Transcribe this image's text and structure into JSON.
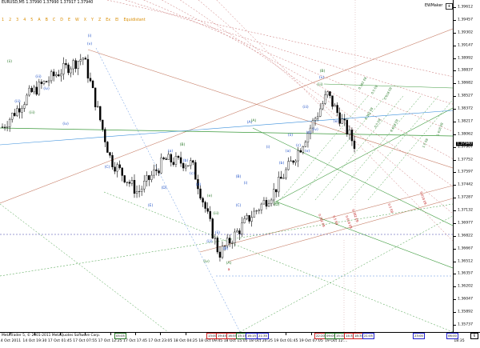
{
  "chart": {
    "symbol_info": "EURUSD,M5 1.37990 1.37990 1.37917 1.37940",
    "indicator_name": "EWMaker",
    "expand_glyph": "+",
    "copyright": "MetaTrader 5, © 2001-2011 MetaQuotes Software Corp."
  },
  "toolbar": {
    "buttons": [
      "1",
      "2",
      "3",
      "4",
      "5",
      "A",
      "B",
      "C",
      "D",
      "E",
      "W",
      "X",
      "Y",
      "Z",
      "Ex",
      "El",
      "Equidistant"
    ]
  },
  "price_axis": {
    "labels": [
      "1.39612",
      "1.39457",
      "1.39302",
      "1.39147",
      "1.38992",
      "1.38837",
      "1.38682",
      "1.38527",
      "1.38372",
      "1.38217",
      "1.38062",
      "1.37907",
      "1.37752",
      "1.37597",
      "1.37442",
      "1.37287",
      "1.37132",
      "1.36977",
      "1.36822",
      "1.36667",
      "1.36512",
      "1.36357",
      "1.36202",
      "1.36047",
      "1.35892",
      "1.35737"
    ],
    "current_price": "1.37940"
  },
  "time_axis": {
    "labels": [
      "14 Oct 2011",
      "14 Oct 19:30",
      "17 Oct 01:45",
      "17 Oct 07:55",
      "17 Oct 12:25",
      "17 Oct 17:45",
      "17 Oct 23:05",
      "18 Oct 04:25",
      "18 Oct 09:45",
      "18 Oct 15:05",
      "18 Oct 20:25",
      "19 Oct 01:45",
      "19 Oct 07:05",
      "19 Oct 12:..."
    ],
    "right_label": "18:35",
    "version": "6"
  },
  "time_boxes": [
    {
      "text": "05:05",
      "color": "green"
    },
    {
      "text": "13:00",
      "color": "red"
    },
    {
      "text": "19:45",
      "color": "red"
    },
    {
      "text": "16:55",
      "color": "red"
    },
    {
      "text": "15:15",
      "color": "green"
    },
    {
      "text": "16:15",
      "color": "blue"
    },
    {
      "text": "21:35",
      "color": "blue"
    },
    {
      "text": "22:20",
      "color": "red"
    },
    {
      "text": "09:05",
      "color": "green"
    },
    {
      "text": "15:10",
      "color": "green"
    },
    {
      "text": "14:35",
      "color": "red"
    },
    {
      "text": "18:35",
      "color": "red"
    },
    {
      "text": "21:05",
      "color": "blue"
    },
    {
      "text": "23:00",
      "color": "blue"
    },
    {
      "text": "06:00",
      "color": "blue"
    }
  ],
  "wave_labels": [
    {
      "text": "(i)",
      "color": "blue"
    },
    {
      "text": "(ii)",
      "color": "green"
    },
    {
      "text": "(v)",
      "color": "blue"
    },
    {
      "text": "(iii)",
      "color": "blue"
    },
    {
      "text": "(iv)",
      "color": "blue"
    },
    {
      "text": "(A)",
      "color": "blue"
    },
    {
      "text": "(B)",
      "color": "green"
    },
    {
      "text": "(C)",
      "color": "blue"
    },
    {
      "text": "(D)",
      "color": "blue"
    },
    {
      "text": "(E)",
      "color": "blue"
    },
    {
      "text": "(iii)",
      "color": "blue"
    },
    {
      "text": "(iv)",
      "color": "blue"
    },
    {
      "text": "(iii)",
      "color": "green"
    },
    {
      "text": "(A)",
      "color": "green"
    },
    {
      "text": "(B)",
      "color": "blue"
    },
    {
      "text": "(C)",
      "color": "green"
    },
    {
      "text": "(a)",
      "color": "blue"
    },
    {
      "text": "(b)",
      "color": "blue"
    },
    {
      "text": "(c)",
      "color": "blue"
    },
    {
      "text": "(d)",
      "color": "blue"
    },
    {
      "text": "(e)",
      "color": "green"
    },
    {
      "text": "(iii)",
      "color": "green"
    },
    {
      "text": "a",
      "color": "red"
    },
    {
      "text": "(i)",
      "color": "blue"
    },
    {
      "text": "(ii)",
      "color": "blue"
    },
    {
      "text": "(iii)",
      "color": "blue"
    },
    {
      "text": "(iv)",
      "color": "green"
    },
    {
      "text": "(A)",
      "color": "green"
    },
    {
      "text": "(B)",
      "color": "blue"
    },
    {
      "text": "(C)",
      "color": "blue"
    },
    {
      "text": "(D)",
      "color": "green"
    },
    {
      "text": "(B)",
      "color": "green"
    },
    {
      "text": "(v)",
      "color": "blue"
    },
    {
      "text": "(iii)",
      "color": "blue"
    },
    {
      "text": "(iv)",
      "color": "blue"
    },
    {
      "text": "(a)",
      "color": "blue"
    },
    {
      "text": "(b)",
      "color": "blue"
    },
    {
      "text": "(c)",
      "color": "blue"
    },
    {
      "text": "(d)",
      "color": "blue"
    },
    {
      "text": "(e)",
      "color": "blue"
    },
    {
      "text": "(ii)",
      "color": "blue"
    },
    {
      "text": "(iii)",
      "color": "green"
    },
    {
      "text": "(i)",
      "color": "blue"
    },
    {
      "text": "(v)",
      "color": "blue"
    }
  ],
  "fan_labels": [
    {
      "text": "0.382 EB",
      "color": "green"
    },
    {
      "text": "0.5 EB",
      "color": "green"
    },
    {
      "text": "0.618 EB",
      "color": "green"
    },
    {
      "text": "1.0 EB",
      "color": "green"
    },
    {
      "text": "1.618 EB",
      "color": "green"
    },
    {
      "text": "0.382 EB",
      "color": "red"
    },
    {
      "text": "0.5 EB",
      "color": "red"
    },
    {
      "text": "0.618 EB",
      "color": "red"
    },
    {
      "text": "0.382 EB",
      "color": "green"
    },
    {
      "text": "0.5 EB",
      "color": "green"
    },
    {
      "text": "0.618 EB",
      "color": "green"
    },
    {
      "text": "0.382 EB",
      "color": "red"
    },
    {
      "text": "0.5 EB",
      "color": "red"
    },
    {
      "text": "0.618 EB",
      "color": "red"
    }
  ],
  "colors": {
    "candles": "#000000",
    "pitchfork_red": "#c8806a",
    "pitchfork_green": "#3c9a3c",
    "trend_blue": "#3a8fdc",
    "dotted_green": "#3c9a3c",
    "dotted_blue": "#5b8fe0",
    "dotted_red": "#c86e6e",
    "dotted_navy": "#3a3aa8",
    "label_blue": "#2455c8",
    "label_green": "#2b7a2b",
    "label_red": "#c22222"
  },
  "chart_data": {
    "type": "candlestick",
    "symbol": "EURUSD",
    "timeframe": "M5",
    "ylim": [
      1.35737,
      1.39612
    ],
    "ohlc_last": {
      "open": 1.3799,
      "high": 1.3799,
      "low": 1.37917,
      "close": 1.3794
    },
    "price_path": [
      {
        "t": "14 Oct 2011",
        "p": 1.3815
      },
      {
        "t": "14 Oct 19:30",
        "p": 1.3855
      },
      {
        "t": "17 Oct 01:45",
        "p": 1.388
      },
      {
        "t": "17 Oct 07:55",
        "p": 1.39
      },
      {
        "t": "17 Oct 12:25",
        "p": 1.3775
      },
      {
        "t": "17 Oct 17:45",
        "p": 1.3735
      },
      {
        "t": "17 Oct 23:05",
        "p": 1.3775
      },
      {
        "t": "18 Oct 04:25",
        "p": 1.377
      },
      {
        "t": "18 Oct 09:45",
        "p": 1.366
      },
      {
        "t": "18 Oct 15:05",
        "p": 1.37
      },
      {
        "t": "18 Oct 20:25",
        "p": 1.3735
      },
      {
        "t": "19 Oct 01:45",
        "p": 1.379
      },
      {
        "t": "19 Oct 07:05",
        "p": 1.3855
      },
      {
        "t": "19 Oct 12:...",
        "p": 1.3794
      }
    ]
  }
}
